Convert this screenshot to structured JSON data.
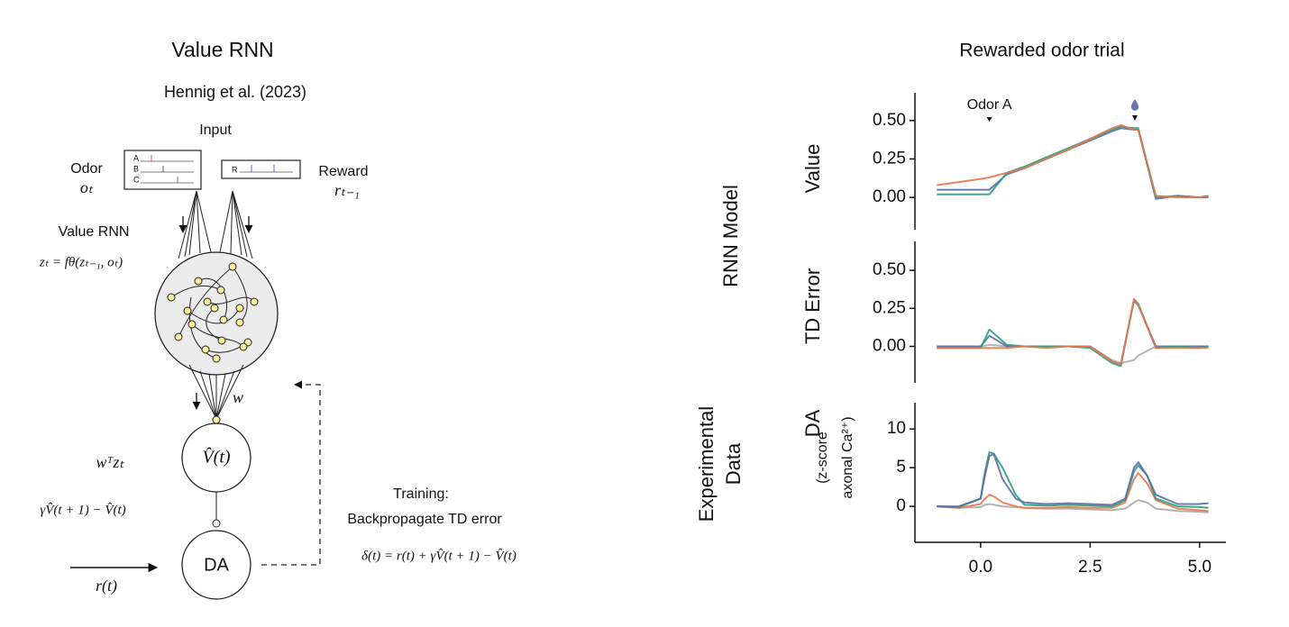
{
  "diagram": {
    "title": "Value RNN",
    "citation": "Hennig et al. (2023)",
    "input_label": "Input",
    "odor_label": "Odor",
    "odor_symbol": "oₜ",
    "odor_rows": [
      "A",
      "B",
      "C"
    ],
    "reward_row": "R",
    "reward_label": "Reward",
    "reward_symbol": "rₜ₋₁",
    "rnn_label": "Value RNN",
    "rnn_equation": "zₜ = fθ(zₜ₋₁, oₜ)",
    "weight_symbol": "w",
    "value_equation": "wᵀzₜ",
    "value_node": "V̂(t)",
    "td_equation": "γV̂(t + 1) − V̂(t)",
    "da_node": "DA",
    "reward_input": "r(t)",
    "training_title": "Training:",
    "training_text": "Backpropagate TD error",
    "training_equation": "δ(t) = r(t) + γV̂(t + 1) − V̂(t)"
  },
  "figure": {
    "title": "Rewarded odor trial",
    "row_labels": [
      [
        "RNN Model"
      ],
      [
        "Experimental",
        "Data"
      ]
    ],
    "annotation": {
      "text": "Odor A",
      "x": 0.2
    }
  },
  "chart_data": [
    {
      "type": "line",
      "ylabel": "Value",
      "x": [
        -1,
        -0.5,
        0,
        0.2,
        0.6,
        1,
        1.5,
        2,
        2.5,
        3,
        3.2,
        3.5,
        3.6,
        4,
        4.5,
        5,
        5.2
      ],
      "series": [
        {
          "color": "#5b6fa6",
          "values": [
            0.05,
            0.05,
            0.05,
            0.05,
            0.15,
            0.19,
            0.25,
            0.31,
            0.37,
            0.43,
            0.45,
            0.44,
            0.44,
            -0.01,
            0.01,
            0.0,
            0.0
          ]
        },
        {
          "color": "#2a9d7f",
          "values": [
            0.02,
            0.02,
            0.02,
            0.02,
            0.16,
            0.2,
            0.26,
            0.32,
            0.38,
            0.44,
            0.46,
            0.45,
            0.45,
            0.0,
            0.01,
            0.0,
            0.01
          ]
        },
        {
          "color": "#e8784a",
          "values": [
            0.08,
            0.1,
            0.12,
            0.13,
            0.16,
            0.19,
            0.25,
            0.31,
            0.38,
            0.45,
            0.47,
            0.44,
            0.44,
            0.01,
            0.0,
            0.0,
            0.01
          ]
        }
      ],
      "xlim": [
        -1.5,
        5.6
      ],
      "ylim": [
        -0.21,
        0.68
      ],
      "yticks": [
        {
          "value": 0,
          "label": "0.00"
        },
        {
          "value": 0.25,
          "label": "0.25"
        },
        {
          "value": 0.5,
          "label": "0.50"
        }
      ]
    },
    {
      "type": "line",
      "ylabel": "TD Error",
      "x": [
        -1,
        -0.5,
        0,
        0.2,
        0.6,
        1,
        1.5,
        2,
        2.5,
        3,
        3.2,
        3.5,
        3.6,
        4,
        4.5,
        5,
        5.2
      ],
      "series": [
        {
          "color": "#aaaaaa",
          "values": [
            0.0,
            0.0,
            0.0,
            0.01,
            0.0,
            0.0,
            0.0,
            0.0,
            0.0,
            -0.09,
            -0.11,
            -0.09,
            -0.06,
            0.0,
            0.0,
            0.0,
            0.0
          ]
        },
        {
          "color": "#5b6fa6",
          "values": [
            0.0,
            0.0,
            0.0,
            0.07,
            0.0,
            0.0,
            0.0,
            0.0,
            0.0,
            -0.1,
            -0.12,
            0.3,
            0.27,
            0.0,
            0.0,
            0.0,
            0.0
          ]
        },
        {
          "color": "#2a9d7f",
          "values": [
            -0.01,
            -0.01,
            -0.01,
            0.11,
            0.01,
            0.0,
            0.0,
            0.0,
            -0.01,
            -0.11,
            -0.13,
            0.31,
            0.28,
            -0.01,
            0.0,
            -0.01,
            0.0
          ]
        },
        {
          "color": "#e8784a",
          "values": [
            -0.01,
            -0.01,
            -0.01,
            -0.01,
            -0.01,
            0.0,
            -0.01,
            0.0,
            0.0,
            -0.1,
            -0.12,
            0.31,
            0.27,
            -0.01,
            -0.01,
            -0.01,
            -0.01
          ]
        }
      ],
      "xlim": [
        -1.5,
        5.6
      ],
      "ylim": [
        -0.24,
        0.69
      ],
      "yticks": [
        {
          "value": 0,
          "label": "0.00"
        },
        {
          "value": 0.25,
          "label": "0.25"
        },
        {
          "value": 0.5,
          "label": "0.50"
        }
      ]
    },
    {
      "type": "line",
      "ylabel": "DA",
      "ylabel_sub": [
        "(z-score",
        "axonal Ca²⁺)"
      ],
      "x": [
        -1,
        -0.5,
        0,
        0.1,
        0.2,
        0.3,
        0.5,
        0.8,
        1,
        1.5,
        2,
        2.5,
        3,
        3.3,
        3.5,
        3.6,
        3.8,
        4,
        4.5,
        5,
        5.2
      ],
      "series": [
        {
          "color": "#aaaaaa",
          "values": [
            0,
            -0.2,
            -0.1,
            0.2,
            0.3,
            0.2,
            0,
            -0.1,
            -0.2,
            -0.3,
            -0.3,
            -0.4,
            -0.5,
            -0.3,
            0.5,
            0.8,
            0.5,
            -0.3,
            -0.6,
            -0.7,
            -0.8
          ]
        },
        {
          "color": "#e8784a",
          "values": [
            0,
            -0.2,
            0.3,
            1,
            1.5,
            1.3,
            0.5,
            0,
            -0.2,
            -0.2,
            -0.1,
            -0.2,
            -0.2,
            0.5,
            3.5,
            4.3,
            3,
            0.8,
            -0.3,
            -0.5,
            -0.6
          ]
        },
        {
          "color": "#2a9d7f",
          "values": [
            0,
            -0.1,
            1,
            4.5,
            7,
            6.8,
            5,
            1.5,
            0.2,
            0.1,
            0.2,
            0.1,
            0,
            0.8,
            4.5,
            5.3,
            4,
            1,
            0,
            -0.1,
            -0.2
          ]
        },
        {
          "color": "#5b6fa6",
          "values": [
            0,
            0,
            1,
            4,
            6.5,
            6.8,
            3.5,
            1,
            0.5,
            0.3,
            0.4,
            0.3,
            0.2,
            1,
            5,
            5.7,
            4,
            1.5,
            0.3,
            0.3,
            0.4
          ]
        }
      ],
      "xlim": [
        -1.5,
        5.6
      ],
      "ylim": [
        -4.65,
        13.4
      ],
      "yticks": [
        0,
        5,
        10
      ],
      "xticks": [
        {
          "value": 0,
          "label": "0.0"
        },
        {
          "value": 2.5,
          "label": "2.5"
        },
        {
          "value": 5,
          "label": "5.0"
        }
      ]
    }
  ]
}
